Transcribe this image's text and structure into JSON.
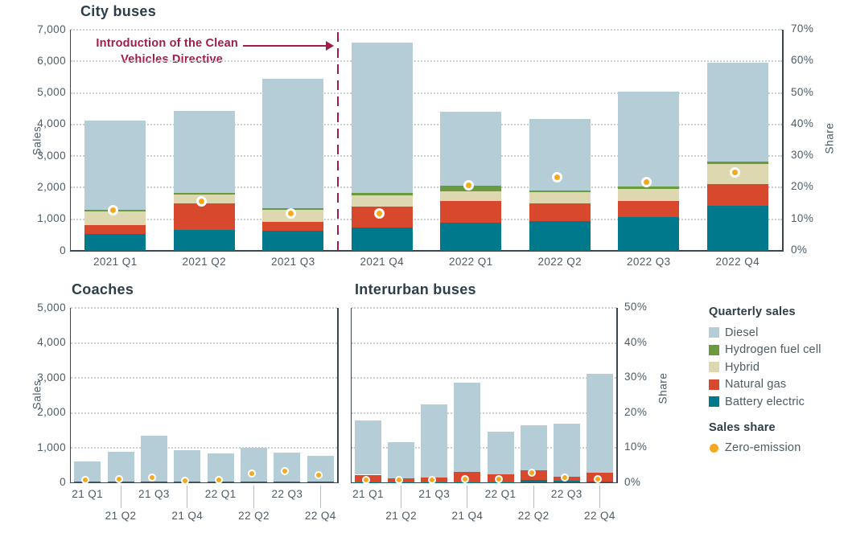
{
  "colors": {
    "diesel": "#b5cdd7",
    "hydrogen_fuel_cell": "#6a9a3e",
    "hybrid": "#ddd8af",
    "natural_gas": "#d8482c",
    "battery_electric": "#00798c",
    "zero_emission": "#f5a71d",
    "annotation": "#a01c4d",
    "heading_text": "#2c3e4a",
    "axis_text": "#4c5b66",
    "axis_line": "#3a454e",
    "gridline": "#c9ced1",
    "leader_line": "#b6bcbf"
  },
  "legend": {
    "sales_header": "Quarterly sales",
    "items": [
      {
        "label": "Diesel",
        "color": "diesel"
      },
      {
        "label": "Hydrogen fuel cell",
        "color": "hydrogen_fuel_cell"
      },
      {
        "label": "Hybrid",
        "color": "hybrid"
      },
      {
        "label": "Natural gas",
        "color": "natural_gas"
      },
      {
        "label": "Battery electric",
        "color": "battery_electric"
      }
    ],
    "share_header": "Sales share",
    "share_item": {
      "label": "Zero-emission",
      "color": "zero_emission"
    }
  },
  "chart_data": [
    {
      "type": "bar",
      "stacked": true,
      "title": "City buses",
      "ylabel": "Sales",
      "y2label": "Share",
      "ylim": [
        0,
        7000
      ],
      "y2lim": [
        0,
        70
      ],
      "grid": "dotted-horizontal",
      "legend_position": "right",
      "categories": [
        "2021 Q1",
        "2021 Q2",
        "2021 Q3",
        "2021 Q4",
        "2022 Q1",
        "2022 Q2",
        "2022 Q3",
        "2022 Q4"
      ],
      "y_ticks": [
        {
          "v": 0,
          "label": "0"
        },
        {
          "v": 1000,
          "label": "1,000"
        },
        {
          "v": 2000,
          "label": "2,000"
        },
        {
          "v": 3000,
          "label": "3,000"
        },
        {
          "v": 4000,
          "label": "4,000"
        },
        {
          "v": 5000,
          "label": "5,000"
        },
        {
          "v": 6000,
          "label": "6,000"
        },
        {
          "v": 7000,
          "label": "7,000"
        }
      ],
      "y2_ticks": [
        {
          "v": 0,
          "label": "0%"
        },
        {
          "v": 10,
          "label": "10%"
        },
        {
          "v": 20,
          "label": "20%"
        },
        {
          "v": 30,
          "label": "30%"
        },
        {
          "v": 40,
          "label": "40%"
        },
        {
          "v": 50,
          "label": "50%"
        },
        {
          "v": 60,
          "label": "60%"
        },
        {
          "v": 70,
          "label": "70%"
        }
      ],
      "series": [
        {
          "name": "Diesel",
          "color": "diesel",
          "values": [
            2820,
            2610,
            4120,
            4760,
            2340,
            2270,
            3000,
            3120
          ]
        },
        {
          "name": "Hydrogen fuel cell",
          "color": "hydrogen_fuel_cell",
          "values": [
            60,
            60,
            50,
            80,
            180,
            50,
            60,
            70
          ]
        },
        {
          "name": "Hybrid",
          "color": "hybrid",
          "values": [
            430,
            280,
            380,
            350,
            290,
            360,
            380,
            640
          ]
        },
        {
          "name": "Natural gas",
          "color": "natural_gas",
          "values": [
            290,
            830,
            280,
            660,
            700,
            560,
            530,
            700
          ]
        },
        {
          "name": "Battery electric",
          "color": "battery_electric",
          "values": [
            530,
            660,
            630,
            750,
            890,
            940,
            1060,
            1420
          ]
        }
      ],
      "scatter": {
        "name": "Zero-emission",
        "color": "zero_emission",
        "values_pct": [
          12,
          15,
          11,
          11,
          20,
          22.5,
          21,
          24
        ]
      },
      "annotation": {
        "line1": "Introduction of the Clean",
        "line2": "Vehicles Directive",
        "divider_after_index": 2
      }
    },
    {
      "type": "bar",
      "stacked": true,
      "title": "Coaches",
      "ylabel": "Sales",
      "ylim": [
        0,
        5000
      ],
      "y2lim": [
        0,
        50
      ],
      "grid": "dotted-horizontal",
      "categories": [
        "21 Q1",
        "21 Q2",
        "21 Q3",
        "21 Q4",
        "22 Q1",
        "22 Q2",
        "22 Q3",
        "22 Q4"
      ],
      "y_ticks": [
        {
          "v": 0,
          "label": "0"
        },
        {
          "v": 1000,
          "label": "1,000"
        },
        {
          "v": 2000,
          "label": "2,000"
        },
        {
          "v": 3000,
          "label": "3,000"
        },
        {
          "v": 4000,
          "label": "4,000"
        },
        {
          "v": 5000,
          "label": "5,000"
        }
      ],
      "series": [
        {
          "name": "Diesel",
          "color": "diesel",
          "values": [
            575,
            870,
            1305,
            895,
            820,
            970,
            815,
            745
          ]
        },
        {
          "name": "Battery electric",
          "color": "battery_electric",
          "values": [
            25,
            25,
            45,
            25,
            30,
            30,
            40,
            30
          ]
        }
      ],
      "scatter": {
        "name": "Zero-emission",
        "color": "zero_emission",
        "values_pct": [
          0.2,
          0.5,
          1.0,
          0.1,
          0.3,
          2.0,
          2.7,
          1.6
        ]
      }
    },
    {
      "type": "bar",
      "stacked": true,
      "title": "Interurban buses",
      "y2label": "Share",
      "ylim": [
        0,
        5000
      ],
      "y2lim": [
        0,
        50
      ],
      "grid": "dotted-horizontal",
      "categories": [
        "21 Q1",
        "21 Q2",
        "21 Q3",
        "21 Q4",
        "22 Q1",
        "22 Q2",
        "22 Q3",
        "22 Q4"
      ],
      "y_ticks": [
        {
          "v": 0
        },
        {
          "v": 1000
        },
        {
          "v": 2000
        },
        {
          "v": 3000
        },
        {
          "v": 4000
        },
        {
          "v": 5000
        }
      ],
      "y2_ticks": [
        {
          "v": 0,
          "label": "0%"
        },
        {
          "v": 10,
          "label": "10%"
        },
        {
          "v": 20,
          "label": "20%"
        },
        {
          "v": 30,
          "label": "30%"
        },
        {
          "v": 40,
          "label": "40%"
        },
        {
          "v": 50,
          "label": "50%"
        }
      ],
      "series": [
        {
          "name": "Diesel",
          "color": "diesel",
          "values": [
            1550,
            1020,
            2070,
            2560,
            1200,
            1290,
            1510,
            2835
          ]
        },
        {
          "name": "Natural gas",
          "color": "natural_gas",
          "values": [
            215,
            120,
            150,
            290,
            235,
            280,
            110,
            250
          ]
        },
        {
          "name": "Battery electric",
          "color": "battery_electric",
          "values": [
            15,
            10,
            10,
            15,
            15,
            80,
            60,
            35
          ]
        }
      ],
      "scatter": {
        "name": "Zero-emission",
        "color": "zero_emission",
        "values_pct": [
          0.3,
          0.2,
          0.3,
          0.4,
          0.5,
          2.3,
          1.0,
          0.5
        ]
      }
    }
  ]
}
